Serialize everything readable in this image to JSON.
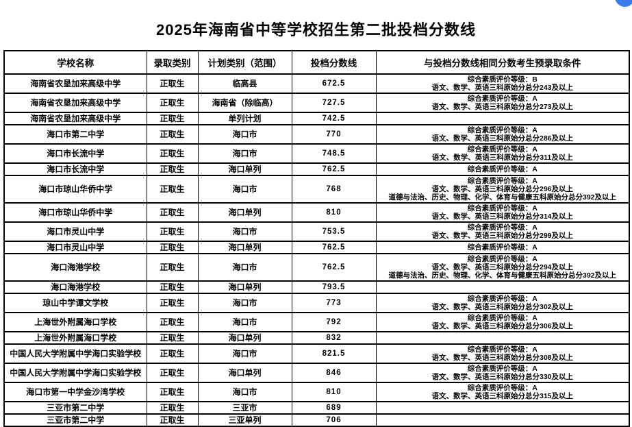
{
  "page": {
    "title": "2025年海南省中等学校招生第二批投档分数线"
  },
  "widget": {
    "name": "floating-button-fragment",
    "color": "#3d7bea"
  },
  "table": {
    "columns": [
      "学校名称",
      "录取类别",
      "计划类别（范围）",
      "投档分数线",
      "与投档分数线相同分数考生预录取条件"
    ],
    "rows": [
      {
        "school": "海南省农垦加来高级中学",
        "category": "正取生",
        "plan": "临高县",
        "score": "672.5",
        "conditions": [
          "综合素质评价等级：B",
          "语文、数学、英语三科原始分总分243及以上"
        ]
      },
      {
        "school": "海南省农垦加来高级中学",
        "category": "正取生",
        "plan": "海南省（除临高）",
        "score": "727.5",
        "conditions": [
          "综合素质评价等级：A",
          "语文、数学、英语三科原始分总分273及以上"
        ]
      },
      {
        "school": "海南省农垦加来高级中学",
        "category": "正取生",
        "plan": "单列计划",
        "score": "742.5",
        "conditions": []
      },
      {
        "school": "海口市第二中学",
        "category": "正取生",
        "plan": "海口市",
        "score": "770",
        "conditions": [
          "综合素质评价等级：A",
          "语文、数学、英语三科原始分总分286及以上"
        ]
      },
      {
        "school": "海口市长流中学",
        "category": "正取生",
        "plan": "海口市",
        "score": "748.5",
        "conditions": [
          "综合素质评价等级：A",
          "语文、数学、英语三科原始分总分311及以上"
        ]
      },
      {
        "school": "海口市长流中学",
        "category": "正取生",
        "plan": "海口单列",
        "score": "762.5",
        "conditions": [
          "综合素质评价等级：A"
        ]
      },
      {
        "school": "海口市琼山华侨中学",
        "category": "正取生",
        "plan": "海口市",
        "score": "768",
        "conditions": [
          "综合素质评价等级：A",
          "语文、数学、英语三科原始分总分296及以上",
          "道德与法治、历史、物理、化学、体育与健康五科原始分总分392及以上"
        ]
      },
      {
        "school": "海口市琼山华侨中学",
        "category": "正取生",
        "plan": "海口单列",
        "score": "810",
        "conditions": [
          "综合素质评价等级：A",
          "语文、数学、英语三科原始分总分314及以上"
        ]
      },
      {
        "school": "海口市灵山中学",
        "category": "正取生",
        "plan": "海口市",
        "score": "753.5",
        "conditions": [
          "综合素质评价等级：A",
          "语文、数学、英语三科原始分总分299及以上"
        ]
      },
      {
        "school": "海口市灵山中学",
        "category": "正取生",
        "plan": "海口单列",
        "score": "762.5",
        "conditions": [
          "综合素质评价等级：A"
        ]
      },
      {
        "school": "海口海港学校",
        "category": "正取生",
        "plan": "海口市",
        "score": "762.5",
        "conditions": [
          "综合素质评价等级：A",
          "语文、数学、英语三科原始分总分294及以上",
          "道德与法治、历史、物理、化学、体育与健康五科原始分总分392及以上"
        ]
      },
      {
        "school": "海口海港学校",
        "category": "正取生",
        "plan": "海口单列",
        "score": "793.5",
        "conditions": []
      },
      {
        "school": "琼山中学谭文学校",
        "category": "正取生",
        "plan": "海口市",
        "score": "773",
        "conditions": [
          "综合素质评价等级：A",
          "语文、数学、英语三科原始分总分302及以上"
        ]
      },
      {
        "school": "上海世外附属海口学校",
        "category": "正取生",
        "plan": "海口市",
        "score": "792",
        "conditions": [
          "综合素质评价等级：A",
          "语文、数学、英语三科原始分总分306及以上"
        ]
      },
      {
        "school": "上海世外附属海口学校",
        "category": "正取生",
        "plan": "海口单列",
        "score": "832",
        "conditions": []
      },
      {
        "school": "中国人民大学附属中学海口实验学校",
        "category": "正取生",
        "plan": "海口市",
        "score": "821.5",
        "conditions": [
          "综合素质评价等级：A",
          "语文、数学、英语三科原始分总分308及以上"
        ]
      },
      {
        "school": "中国人民大学附属中学海口实验学校",
        "category": "正取生",
        "plan": "海口单列",
        "score": "846",
        "conditions": [
          "综合素质评价等级：A",
          "语文、数学、英语三科原始分总分330及以上"
        ]
      },
      {
        "school": "海口市第一中学金沙湾学校",
        "category": "正取生",
        "plan": "海口市",
        "score": "810",
        "conditions": [
          "综合素质评价等级：A",
          "语文、数学、英语三科原始分总分315及以上"
        ]
      },
      {
        "school": "三亚市第二中学",
        "category": "正取生",
        "plan": "三亚市",
        "score": "689",
        "conditions": []
      },
      {
        "school": "三亚市第二中学",
        "category": "正取生",
        "plan": "三亚单列",
        "score": "706",
        "conditions": []
      }
    ]
  }
}
